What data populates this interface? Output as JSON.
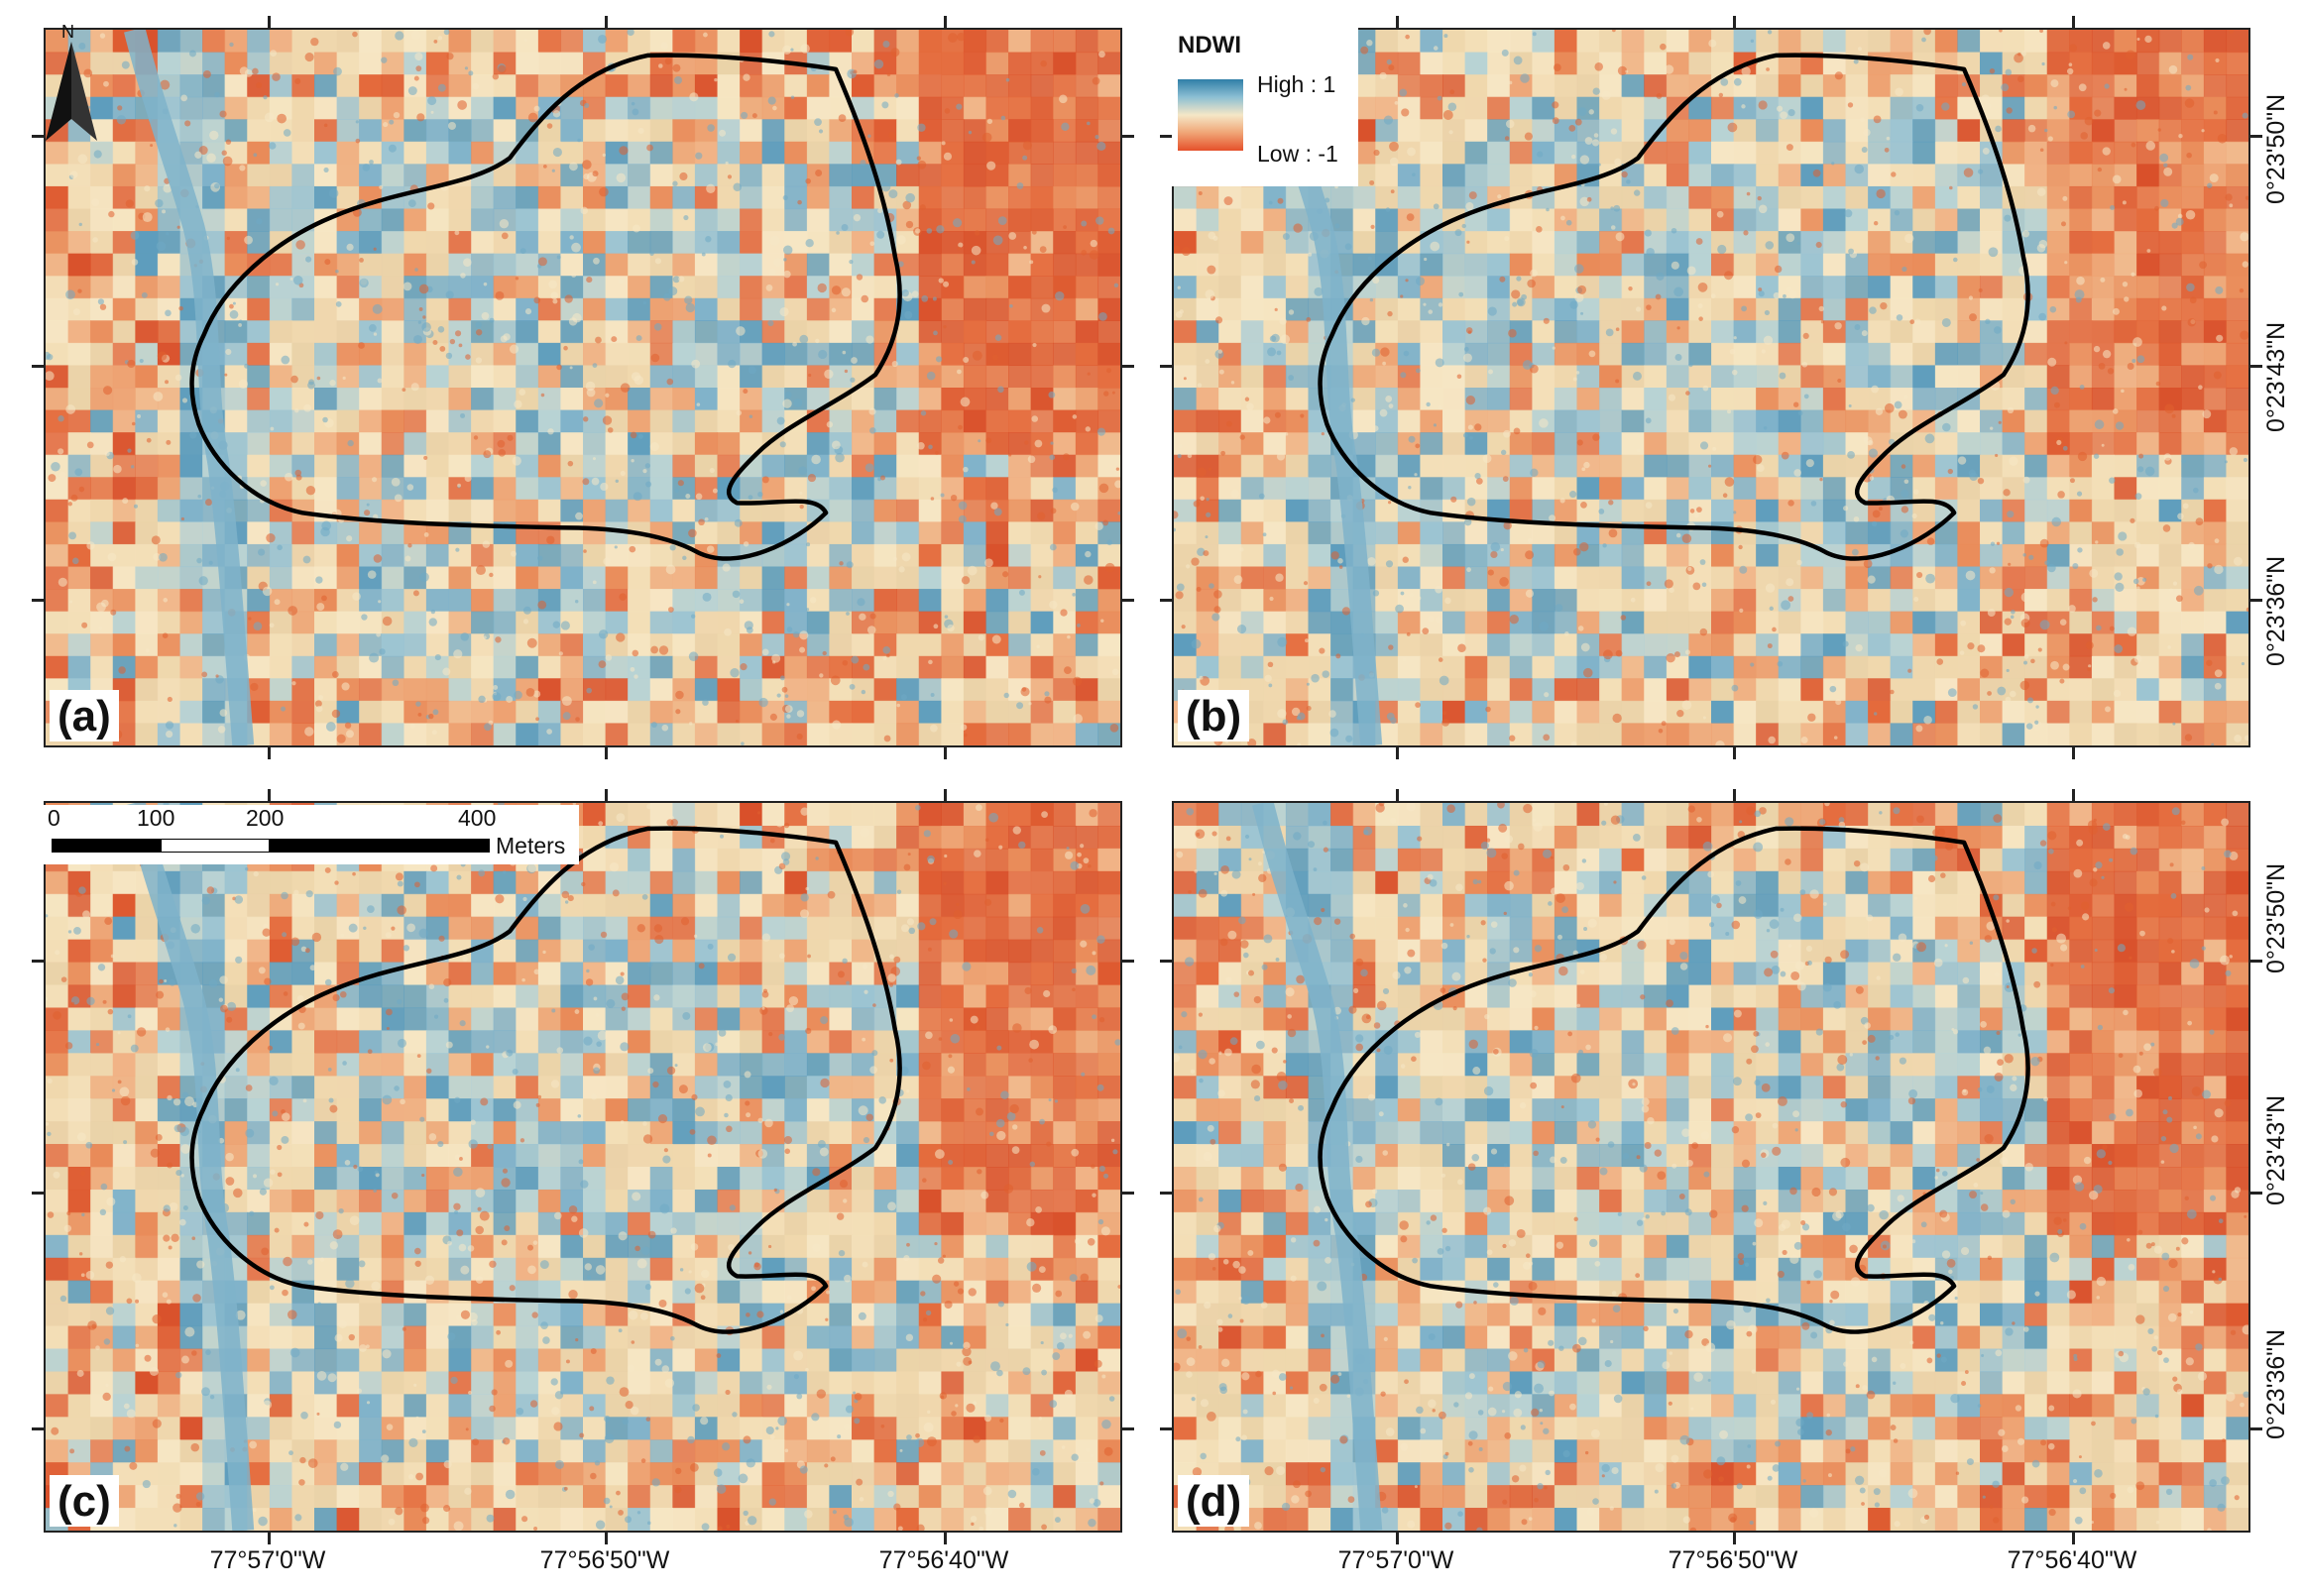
{
  "panels": [
    {
      "label": "(a)"
    },
    {
      "label": "(b)"
    },
    {
      "label": "(c)"
    },
    {
      "label": "(d)"
    }
  ],
  "legend": {
    "title": "NDWI",
    "high": "High : 1",
    "low": "Low : -1",
    "colors": {
      "high": "#2f7fa8",
      "mid": "#f5e7c7",
      "low": "#e5502a"
    }
  },
  "north_arrow": {
    "letter": "N",
    "icon": "north-arrow-icon"
  },
  "scale_bar": {
    "ticks": [
      "0",
      "100",
      "200",
      "400"
    ],
    "unit": "Meters"
  },
  "longitude_labels": [
    "77°57'0\"W",
    "77°56'50\"W",
    "77°56'40\"W"
  ],
  "latitude_labels": [
    "0°23'50\"N",
    "0°23'43\"N",
    "0°23'36\"N"
  ]
}
